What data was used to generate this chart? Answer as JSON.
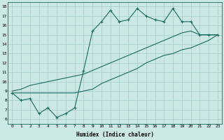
{
  "xlabel": "Humidex (Indice chaleur)",
  "background_color": "#cce8e4",
  "grid_color": "#aacfcb",
  "line_color": "#1a6b60",
  "xlim": [
    -0.5,
    23.5
  ],
  "ylim": [
    5.5,
    18.5
  ],
  "xticks": [
    0,
    1,
    2,
    3,
    4,
    5,
    6,
    7,
    8,
    9,
    10,
    11,
    12,
    13,
    14,
    15,
    16,
    17,
    18,
    19,
    20,
    21,
    22,
    23
  ],
  "yticks": [
    6,
    7,
    8,
    9,
    10,
    11,
    12,
    13,
    14,
    15,
    16,
    17,
    18
  ],
  "series_top": [
    8.8,
    8.0,
    8.2,
    6.6,
    7.2,
    6.2,
    6.6,
    7.2,
    11.2,
    15.4,
    16.4,
    17.6,
    16.4,
    16.6,
    17.8,
    17.0,
    16.6,
    16.4,
    17.8,
    16.4,
    16.4,
    15.0,
    15.0,
    15.0
  ],
  "series_mid": [
    9.0,
    9.2,
    9.6,
    9.8,
    10.0,
    10.2,
    10.4,
    10.6,
    10.8,
    11.2,
    11.6,
    12.0,
    12.4,
    12.8,
    13.2,
    13.6,
    14.0,
    14.4,
    14.8,
    15.2,
    15.4,
    15.0,
    15.0,
    15.0
  ],
  "series_bot": [
    8.8,
    8.8,
    8.8,
    8.8,
    8.8,
    8.8,
    8.8,
    8.8,
    9.0,
    9.2,
    9.8,
    10.2,
    10.6,
    11.0,
    11.4,
    12.0,
    12.4,
    12.8,
    13.0,
    13.4,
    13.6,
    14.0,
    14.4,
    15.0
  ]
}
